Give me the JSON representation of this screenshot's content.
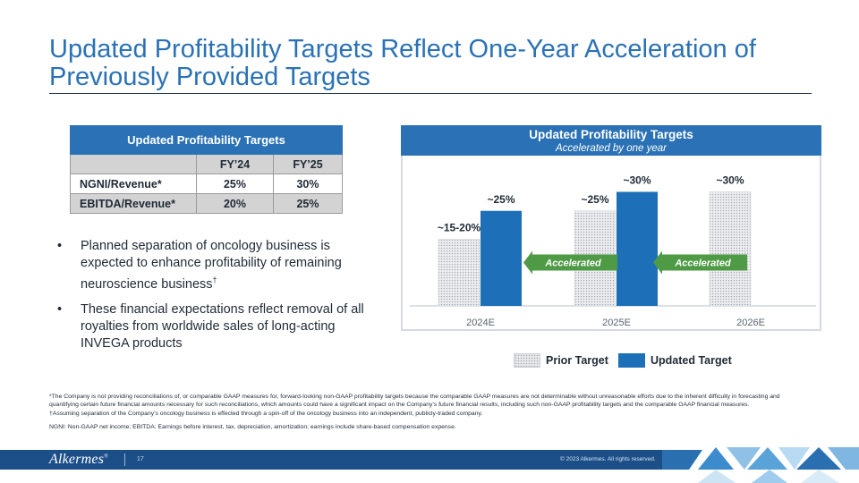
{
  "title_line1": "Updated Profitability Targets Reflect One-Year Acceleration of",
  "title_line2": "Previously Provided Targets",
  "table": {
    "header": "Updated Profitability Targets",
    "col_blank": "",
    "col1": "FY’24",
    "col2": "FY’25",
    "rows": [
      {
        "label": "NGNI/Revenue*",
        "fy24": "25%",
        "fy25": "30%"
      },
      {
        "label": "EBITDA/Revenue*",
        "fy24": "20%",
        "fy25": "25%"
      }
    ]
  },
  "bullets": [
    {
      "text": "Planned separation of oncology business is expected to enhance profitability of remaining neuroscience business",
      "mark": "†"
    },
    {
      "text": "These financial expectations reflect removal of all royalties from worldwide sales of long-acting INVEGA products",
      "mark": ""
    }
  ],
  "chart_data": {
    "type": "bar",
    "title": "Updated Profitability Targets",
    "subtitle": "Accelerated by one year",
    "categories": [
      "2024E",
      "2025E",
      "2026E"
    ],
    "series": [
      {
        "name": "Prior Target",
        "values": [
          17.5,
          25,
          30
        ],
        "labels": [
          "~15-20%",
          "~25%",
          "~30%"
        ]
      },
      {
        "name": "Updated Target",
        "values": [
          25,
          30,
          null
        ],
        "labels": [
          "~25%",
          "~30%",
          ""
        ]
      }
    ],
    "ylim": [
      0,
      35
    ],
    "annotations": [
      "Accelerated",
      "Accelerated"
    ],
    "legend": [
      "Prior Target",
      "Updated Target"
    ],
    "legend_position": "bottom"
  },
  "footnotes": [
    "*The Company is not providing reconciliations of, or comparable GAAP measures for, forward-looking non-GAAP profitability targets because the comparable GAAP measures are not determinable without unreasonable efforts due to the inherent difficulty in forecasting and quantifying certain future financial amounts necessary for such reconciliations, which amounts could have a significant impact on the Company’s future financial results, including such non-GAAP profitability targets and the comparable GAAP financial measures.",
    "†Assuming separation of the Company’s oncology business is effected through a spin-off of the oncology business into an independent, publicly-traded company.",
    "NGNI: Non-GAAP net income; EBITDA: Earnings before interest, tax, depreciation, amortization; earnings include share-based compensation expense."
  ],
  "footer": {
    "logo": "Alkermes",
    "logo_mark": "®",
    "page": "17",
    "copyright": "© 2023 Alkermes. All rights reserved."
  },
  "colors": {
    "accent": "#2a72b5",
    "bar_updated": "#1d70b8",
    "arrow": "#4e9a45",
    "band": "#1c4f88"
  }
}
